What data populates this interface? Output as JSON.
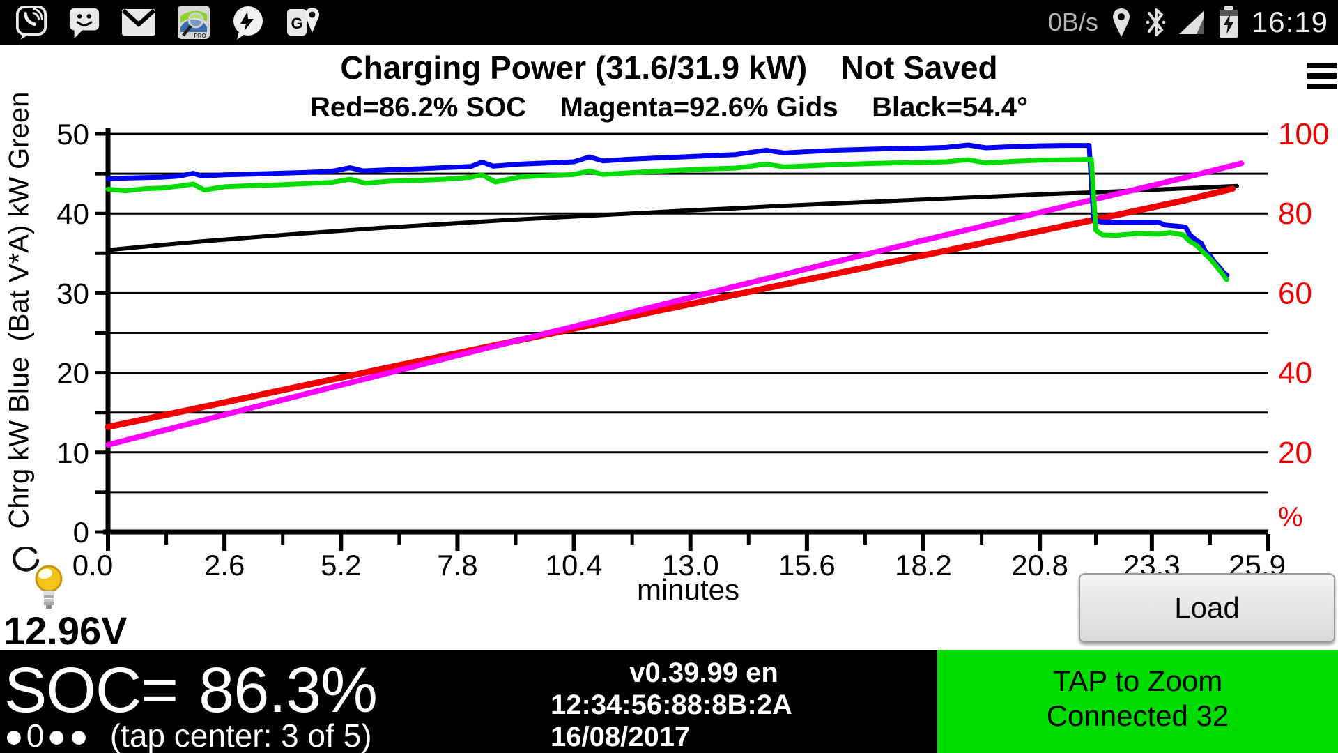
{
  "status_bar": {
    "data_rate": "0B/s",
    "time": "16:19",
    "left_icon_names": [
      "viber-icon",
      "sms-icon",
      "email-icon",
      "leafspy-icon",
      "messenger-icon",
      "maps-icon"
    ],
    "right_icon_names": [
      "location-icon",
      "bluetooth-icon",
      "signal-icon",
      "battery-charging-icon"
    ]
  },
  "header": {
    "title_main": "Charging Power (31.6/31.9 kW)",
    "title_status": "Not Saved",
    "legend_red": "Red=86.2% SOC",
    "legend_magenta": "Magenta=92.6% Gids",
    "legend_black": "Black=54.4°"
  },
  "chart_data": {
    "type": "line",
    "title": "Charging Power (31.6/31.9 kW)",
    "xlabel": "minutes",
    "x_range": [
      0,
      25.9
    ],
    "x_tick_values": [
      0.0,
      2.6,
      5.2,
      7.8,
      10.4,
      13.0,
      15.6,
      18.2,
      20.8,
      23.3,
      25.9
    ],
    "x_tick_labels": [
      "0.0",
      "2.6",
      "5.2",
      "7.8",
      "10.4",
      "13.0",
      "15.6",
      "18.2",
      "20.8",
      "23.3",
      "25.9"
    ],
    "left_axis": {
      "label": "Chrg kW Blue  (Bat V*A) kW Green",
      "range": [
        0,
        50
      ],
      "tick_values": [
        50,
        40,
        30,
        20,
        10,
        0
      ],
      "grid_step": 5,
      "color": "#000000"
    },
    "right_axis": {
      "label": "%",
      "range": [
        0,
        100
      ],
      "tick_values": [
        100,
        80,
        60,
        40,
        20
      ],
      "color": "#f00000"
    },
    "grid": true,
    "series": [
      {
        "name": "battery-temp",
        "legend": "Black=54.4°",
        "color": "#000000",
        "axis": "left",
        "width": 6,
        "points": [
          [
            0,
            35.4
          ],
          [
            1,
            35.95
          ],
          [
            2,
            36.45
          ],
          [
            3,
            36.9
          ],
          [
            4,
            37.35
          ],
          [
            5,
            37.75
          ],
          [
            6,
            38.15
          ],
          [
            7,
            38.5
          ],
          [
            8,
            38.85
          ],
          [
            9,
            39.2
          ],
          [
            10,
            39.5
          ],
          [
            11,
            39.8
          ],
          [
            12,
            40.1
          ],
          [
            13,
            40.4
          ],
          [
            14,
            40.65
          ],
          [
            15,
            40.95
          ],
          [
            16,
            41.2
          ],
          [
            17,
            41.45
          ],
          [
            18,
            41.7
          ],
          [
            19,
            41.95
          ],
          [
            20,
            42.2
          ],
          [
            21,
            42.45
          ],
          [
            22,
            42.65
          ],
          [
            23,
            42.9
          ],
          [
            24,
            43.15
          ],
          [
            25.2,
            43.45
          ]
        ]
      },
      {
        "name": "soc-percent",
        "legend": "Red=86.2% SOC",
        "color": "#f00000",
        "axis": "right",
        "width": 9,
        "points": [
          [
            0,
            26.4
          ],
          [
            2,
            31.1
          ],
          [
            4,
            35.9
          ],
          [
            6,
            40.7
          ],
          [
            8,
            45.4
          ],
          [
            10,
            50.1
          ],
          [
            12,
            54.9
          ],
          [
            14,
            59.6
          ],
          [
            16,
            64.3
          ],
          [
            18,
            69.0
          ],
          [
            20,
            73.7
          ],
          [
            22,
            78.4
          ],
          [
            23,
            80.8
          ],
          [
            24,
            83.2
          ],
          [
            25.1,
            86.2
          ]
        ]
      },
      {
        "name": "gids-percent",
        "legend": "Magenta=92.6% Gids",
        "color": "#ff00ff",
        "axis": "right",
        "width": 8,
        "points": [
          [
            0,
            21.9
          ],
          [
            2,
            27.7
          ],
          [
            4,
            33.5
          ],
          [
            6,
            39.2
          ],
          [
            8,
            44.9
          ],
          [
            10,
            50.5
          ],
          [
            12,
            56.1
          ],
          [
            14,
            61.7
          ],
          [
            16,
            67.2
          ],
          [
            18,
            72.7
          ],
          [
            20,
            78.1
          ],
          [
            22,
            83.5
          ],
          [
            23,
            86.2
          ],
          [
            24,
            88.9
          ],
          [
            25.3,
            92.6
          ]
        ]
      },
      {
        "name": "charge-power-kw",
        "legend": "Chrg kW Blue",
        "color": "#0000f2",
        "axis": "left",
        "width": 7,
        "points": [
          [
            0,
            44.35
          ],
          [
            0.4,
            44.45
          ],
          [
            0.8,
            44.5
          ],
          [
            1.2,
            44.55
          ],
          [
            1.6,
            44.7
          ],
          [
            1.9,
            45.05
          ],
          [
            2.1,
            44.7
          ],
          [
            2.6,
            44.85
          ],
          [
            3.2,
            44.95
          ],
          [
            3.8,
            45.05
          ],
          [
            4.4,
            45.15
          ],
          [
            5.0,
            45.3
          ],
          [
            5.4,
            45.75
          ],
          [
            5.7,
            45.35
          ],
          [
            6.3,
            45.5
          ],
          [
            6.9,
            45.6
          ],
          [
            7.5,
            45.75
          ],
          [
            8.1,
            45.9
          ],
          [
            8.35,
            46.45
          ],
          [
            8.6,
            45.95
          ],
          [
            9.2,
            46.2
          ],
          [
            9.8,
            46.35
          ],
          [
            10.4,
            46.5
          ],
          [
            10.75,
            47.1
          ],
          [
            11.05,
            46.6
          ],
          [
            11.6,
            46.8
          ],
          [
            12.2,
            46.95
          ],
          [
            12.8,
            47.1
          ],
          [
            13.4,
            47.25
          ],
          [
            14.0,
            47.4
          ],
          [
            14.7,
            47.95
          ],
          [
            15.1,
            47.6
          ],
          [
            15.7,
            47.8
          ],
          [
            16.3,
            47.95
          ],
          [
            16.9,
            48.05
          ],
          [
            17.5,
            48.15
          ],
          [
            18.1,
            48.2
          ],
          [
            18.7,
            48.3
          ],
          [
            19.2,
            48.6
          ],
          [
            19.6,
            48.25
          ],
          [
            20.2,
            48.4
          ],
          [
            20.8,
            48.5
          ],
          [
            21.4,
            48.55
          ],
          [
            21.9,
            48.55
          ],
          [
            22.0,
            39.3
          ],
          [
            22.15,
            38.95
          ],
          [
            22.5,
            38.9
          ],
          [
            23.0,
            38.9
          ],
          [
            23.45,
            38.9
          ],
          [
            23.6,
            38.55
          ],
          [
            23.9,
            38.4
          ],
          [
            24.05,
            38.3
          ],
          [
            24.15,
            37.3
          ],
          [
            24.3,
            36.6
          ],
          [
            24.4,
            36.3
          ],
          [
            24.5,
            35.2
          ],
          [
            24.6,
            34.7
          ],
          [
            24.7,
            33.9
          ],
          [
            24.8,
            33.3
          ],
          [
            24.9,
            32.6
          ],
          [
            24.98,
            32.2
          ]
        ]
      },
      {
        "name": "battery-power-kw",
        "legend": "(Bat V*A) kW Green",
        "color": "#00dc00",
        "axis": "left",
        "width": 7,
        "points": [
          [
            0,
            43.05
          ],
          [
            0.4,
            42.85
          ],
          [
            0.8,
            43.1
          ],
          [
            1.2,
            43.2
          ],
          [
            1.6,
            43.45
          ],
          [
            1.9,
            43.7
          ],
          [
            2.15,
            42.95
          ],
          [
            2.6,
            43.35
          ],
          [
            3.2,
            43.5
          ],
          [
            3.8,
            43.6
          ],
          [
            4.4,
            43.75
          ],
          [
            5.0,
            43.9
          ],
          [
            5.4,
            44.3
          ],
          [
            5.75,
            43.8
          ],
          [
            6.3,
            44.05
          ],
          [
            6.9,
            44.15
          ],
          [
            7.5,
            44.3
          ],
          [
            8.1,
            44.55
          ],
          [
            8.35,
            44.85
          ],
          [
            8.65,
            43.95
          ],
          [
            9.2,
            44.6
          ],
          [
            9.8,
            44.75
          ],
          [
            10.4,
            44.9
          ],
          [
            10.75,
            45.35
          ],
          [
            11.05,
            44.9
          ],
          [
            11.6,
            45.1
          ],
          [
            12.2,
            45.3
          ],
          [
            12.8,
            45.45
          ],
          [
            13.4,
            45.6
          ],
          [
            14.0,
            45.7
          ],
          [
            14.7,
            46.2
          ],
          [
            15.1,
            45.85
          ],
          [
            15.7,
            46.0
          ],
          [
            16.3,
            46.15
          ],
          [
            16.9,
            46.25
          ],
          [
            17.5,
            46.35
          ],
          [
            18.1,
            46.4
          ],
          [
            18.7,
            46.5
          ],
          [
            19.2,
            46.75
          ],
          [
            19.6,
            46.35
          ],
          [
            20.2,
            46.55
          ],
          [
            20.8,
            46.7
          ],
          [
            21.4,
            46.75
          ],
          [
            21.95,
            46.8
          ],
          [
            22.05,
            37.9
          ],
          [
            22.2,
            37.3
          ],
          [
            22.5,
            37.25
          ],
          [
            23.0,
            37.5
          ],
          [
            23.45,
            37.4
          ],
          [
            23.7,
            37.6
          ],
          [
            24.0,
            37.3
          ],
          [
            24.15,
            36.5
          ],
          [
            24.3,
            36.0
          ],
          [
            24.45,
            35.1
          ],
          [
            24.55,
            34.6
          ],
          [
            24.65,
            34.0
          ],
          [
            24.75,
            33.3
          ],
          [
            24.85,
            32.6
          ],
          [
            24.97,
            31.7
          ]
        ]
      }
    ]
  },
  "footer": {
    "voltage": "12.96V",
    "load_button": "Load",
    "soc_label": "SOC=",
    "soc_value": "86.3%",
    "pager_dots": "●0●●",
    "pager_hint": "(tap center: 3 of 5)",
    "version": "v0.39.99 en",
    "mac": "12:34:56:88:8B:2A",
    "date": "16/08/2017",
    "zoom_hint": "TAP to Zoom",
    "connection": "Connected 32",
    "panel_green": "#00dc00"
  }
}
